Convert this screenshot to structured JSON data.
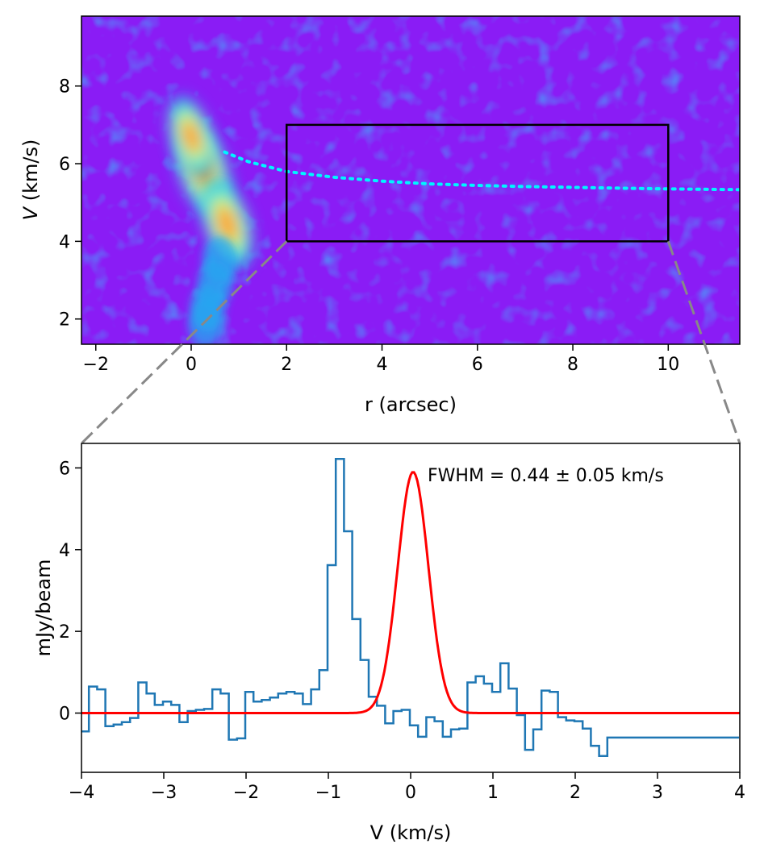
{
  "chart_data": [
    {
      "type": "heatmap",
      "title": "",
      "xlabel": "r (arcsec)",
      "ylabel_italic": "V",
      "ylabel_rest": " (km/s)",
      "xlim": [
        -2.3,
        11.5
      ],
      "ylim": [
        1.35,
        9.8
      ],
      "xticks": [
        "−2",
        "0",
        "2",
        "4",
        "6",
        "8",
        "10"
      ],
      "xtick_values": [
        -2,
        0,
        2,
        4,
        6,
        8,
        10
      ],
      "yticks": [
        "2",
        "4",
        "6",
        "8"
      ],
      "ytick_values": [
        2,
        4,
        6,
        8
      ],
      "colormap": "rainbow",
      "background_color": "#8a1cf5",
      "emission_peaks": [
        {
          "r": 0.25,
          "v": 5.85,
          "level": 1.0
        },
        {
          "r": 0.75,
          "v": 4.45,
          "level": 0.8
        },
        {
          "r": 0.0,
          "v": 6.7,
          "level": 0.55
        }
      ],
      "model_curve": {
        "color": "#00f5ff",
        "style": "dotted",
        "r": [
          0.7,
          1.2,
          2.0,
          3.0,
          4.0,
          5.0,
          6.0,
          7.0,
          8.0,
          9.0,
          10.0,
          11.5
        ],
        "v": [
          6.3,
          6.05,
          5.8,
          5.65,
          5.55,
          5.48,
          5.44,
          5.41,
          5.39,
          5.37,
          5.35,
          5.33
        ]
      },
      "zoom_box": {
        "r": [
          2,
          10
        ],
        "v": [
          4,
          7
        ],
        "color": "#000000"
      }
    },
    {
      "type": "line",
      "title": "",
      "xlabel": "V (km/s)",
      "ylabel": "mJy/beam",
      "xlim": [
        -4,
        4
      ],
      "ylim": [
        -1.45,
        6.6
      ],
      "xticks": [
        "−4",
        "−3",
        "−2",
        "−1",
        "0",
        "1",
        "2",
        "3",
        "4"
      ],
      "xtick_values": [
        -4,
        -3,
        -2,
        -1,
        0,
        1,
        2,
        3,
        4
      ],
      "yticks": [
        "0",
        "2",
        "4",
        "6"
      ],
      "ytick_values": [
        0,
        2,
        4,
        6
      ],
      "annotation": "FWHM = 0.44 ± 0.05 km/s",
      "series": [
        {
          "style": "steps",
          "color": "#1f77b4",
          "x": [
            -3.96,
            -3.86,
            -3.76,
            -3.66,
            -3.56,
            -3.46,
            -3.36,
            -3.26,
            -3.16,
            -3.06,
            -2.96,
            -2.86,
            -2.76,
            -2.66,
            -2.56,
            -2.46,
            -2.36,
            -2.26,
            -2.16,
            -2.06,
            -1.96,
            -1.86,
            -1.76,
            -1.66,
            -1.56,
            -1.46,
            -1.36,
            -1.26,
            -1.16,
            -1.06,
            -0.96,
            -0.86,
            -0.76,
            -0.66,
            -0.56,
            -0.46,
            -0.36,
            -0.26,
            -0.16,
            -0.06,
            0.04,
            0.14,
            0.24,
            0.34,
            0.44,
            0.54,
            0.64,
            0.74,
            0.84,
            0.94,
            1.04,
            1.14,
            1.24,
            1.34,
            1.44,
            1.54,
            1.64,
            1.74,
            1.84,
            1.94,
            2.04,
            2.14,
            2.24,
            2.34,
            2.44,
            2.54,
            2.64,
            2.74,
            2.84,
            2.94,
            3.04,
            3.14,
            3.24,
            3.34,
            3.44,
            3.54,
            3.64,
            3.74,
            3.84,
            3.94
          ],
          "y": [
            -0.45,
            0.65,
            0.58,
            -0.32,
            -0.28,
            -0.22,
            -0.12,
            0.75,
            0.48,
            0.2,
            0.28,
            0.2,
            -0.22,
            0.05,
            0.08,
            0.1,
            0.58,
            0.48,
            -0.65,
            -0.62,
            0.52,
            0.28,
            0.32,
            0.38,
            0.48,
            0.52,
            0.48,
            0.22,
            0.58,
            1.05,
            3.62,
            6.22,
            4.45,
            2.3,
            1.3,
            0.4,
            0.18,
            -0.25,
            0.05,
            0.08,
            -0.3,
            -0.58,
            -0.1,
            -0.2,
            -0.58,
            -0.4,
            -0.38,
            0.75,
            0.9,
            0.72,
            0.52,
            1.22,
            0.6,
            -0.05,
            -0.9,
            -0.4,
            0.55,
            0.52,
            -0.1,
            -0.18,
            -0.2,
            -0.38,
            -0.8,
            -1.05,
            -0.6,
            -0.6,
            -0.6,
            -0.6,
            -0.6,
            -0.6,
            -0.6,
            -0.6,
            -0.6,
            -0.6,
            -0.6,
            -0.6,
            -0.6,
            -0.6,
            -0.6,
            -0.6
          ]
        },
        {
          "style": "gaussian",
          "color": "#ff0000",
          "amplitude": 5.9,
          "center": 0.03,
          "fwhm": 0.44
        }
      ]
    }
  ]
}
